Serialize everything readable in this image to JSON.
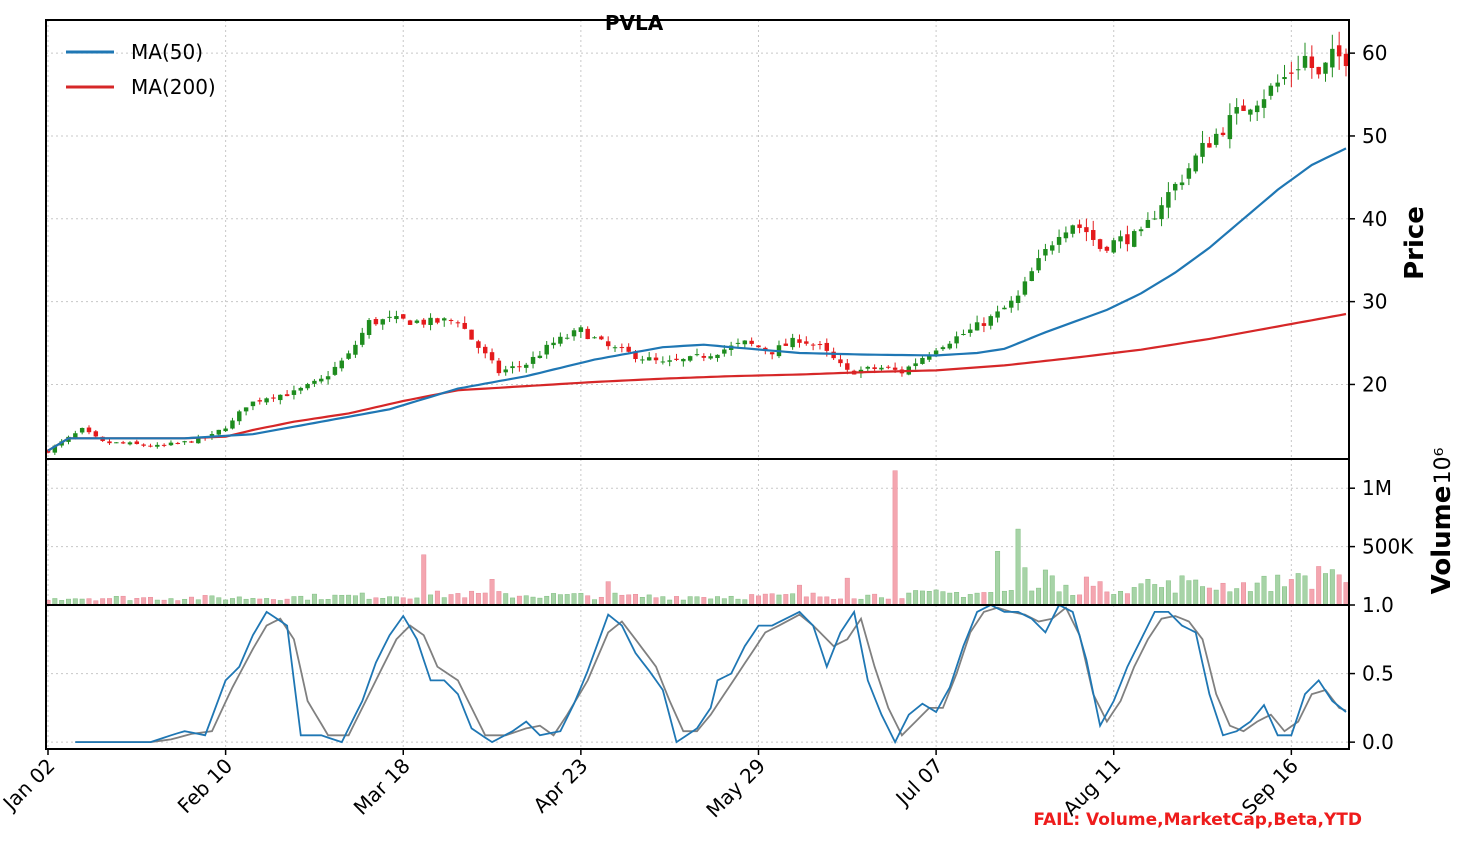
{
  "title": "PVLA",
  "failure_note": "FAIL: Volume,MarketCap,Beta,YTD",
  "colors": {
    "up": "#1e8c1e",
    "down": "#e41a1c",
    "ma50": "#1f77b4",
    "ma200": "#d62728",
    "vol_up": "#a7d3a7",
    "vol_down": "#f4a6b0",
    "stoch_k": "#1f77b4",
    "stoch_d": "#808080"
  },
  "price_axis": {
    "label": "Price",
    "ticks": [
      "20",
      "30",
      "40",
      "50",
      "60"
    ],
    "ylim": [
      11,
      64
    ]
  },
  "volume_axis": {
    "label": "Volume",
    "offset_text": "10⁶",
    "ticks": [
      "500K",
      "1M"
    ],
    "ylim": [
      0,
      1250000
    ]
  },
  "stoch_axis": {
    "ticks": [
      "0.0",
      "0.5",
      "1.0"
    ],
    "ylim": [
      -0.05,
      1.0
    ]
  },
  "x_axis": {
    "tick_labels": [
      "Jan 02",
      "Feb 10",
      "Mar 18",
      "Apr 23",
      "May 29",
      "Jul 07",
      "Aug 11",
      "Sep 16"
    ],
    "tick_index": [
      0,
      26,
      52,
      78,
      104,
      130,
      156,
      182
    ]
  },
  "legend": [
    {
      "label": "MA(50)",
      "color": "#1f77b4"
    },
    {
      "label": "MA(200)",
      "color": "#d62728"
    }
  ],
  "chart_data": [
    {
      "type": "candlestick",
      "n_bars": 191,
      "title": "PVLA",
      "ylabel": "Price",
      "close_keypoints": [
        [
          0,
          12.0
        ],
        [
          3,
          13.5
        ],
        [
          5,
          14.5
        ],
        [
          8,
          13.0
        ],
        [
          12,
          12.8
        ],
        [
          16,
          12.5
        ],
        [
          20,
          13.0
        ],
        [
          24,
          13.8
        ],
        [
          27,
          15.5
        ],
        [
          29,
          17.5
        ],
        [
          32,
          18.5
        ],
        [
          36,
          19.0
        ],
        [
          40,
          20.5
        ],
        [
          44,
          23.5
        ],
        [
          47,
          27.5
        ],
        [
          50,
          27.8
        ],
        [
          56,
          27.5
        ],
        [
          60,
          27.8
        ],
        [
          62,
          25.5
        ],
        [
          66,
          21.5
        ],
        [
          70,
          22.5
        ],
        [
          74,
          25.0
        ],
        [
          78,
          26.5
        ],
        [
          82,
          24.5
        ],
        [
          86,
          23.5
        ],
        [
          90,
          22.5
        ],
        [
          94,
          23.0
        ],
        [
          98,
          24.0
        ],
        [
          102,
          25.0
        ],
        [
          106,
          24.0
        ],
        [
          110,
          25.5
        ],
        [
          113,
          24.5
        ],
        [
          117,
          21.5
        ],
        [
          122,
          22.0
        ],
        [
          125,
          21.5
        ],
        [
          130,
          24.5
        ],
        [
          135,
          26.5
        ],
        [
          139,
          28.5
        ],
        [
          142,
          30.5
        ],
        [
          144,
          33.5
        ],
        [
          146,
          36.0
        ],
        [
          148,
          38.5
        ],
        [
          150,
          39.5
        ],
        [
          152,
          38.5
        ],
        [
          154,
          36.5
        ],
        [
          157,
          37.5
        ],
        [
          160,
          38.0
        ],
        [
          163,
          42.0
        ],
        [
          166,
          45.0
        ],
        [
          169,
          48.5
        ],
        [
          172,
          51.0
        ],
        [
          175,
          53.5
        ],
        [
          178,
          55.0
        ],
        [
          181,
          57.0
        ],
        [
          184,
          59.5
        ],
        [
          186,
          57.0
        ],
        [
          188,
          59.5
        ],
        [
          190,
          59.5
        ]
      ],
      "ma50_keypoints": [
        [
          0,
          12.0
        ],
        [
          3,
          13.5
        ],
        [
          10,
          13.5
        ],
        [
          20,
          13.5
        ],
        [
          30,
          14.0
        ],
        [
          40,
          15.5
        ],
        [
          50,
          17.0
        ],
        [
          60,
          19.5
        ],
        [
          70,
          21.0
        ],
        [
          80,
          23.0
        ],
        [
          90,
          24.5
        ],
        [
          96,
          24.8
        ],
        [
          100,
          24.5
        ],
        [
          110,
          23.8
        ],
        [
          120,
          23.6
        ],
        [
          130,
          23.5
        ],
        [
          136,
          23.8
        ],
        [
          140,
          24.3
        ],
        [
          146,
          26.3
        ],
        [
          150,
          27.5
        ],
        [
          155,
          29.0
        ],
        [
          160,
          31.0
        ],
        [
          165,
          33.5
        ],
        [
          170,
          36.5
        ],
        [
          175,
          40.0
        ],
        [
          180,
          43.5
        ],
        [
          185,
          46.5
        ],
        [
          190,
          48.5
        ]
      ],
      "ma200_keypoints": [
        [
          0,
          12.0
        ],
        [
          3,
          13.5
        ],
        [
          10,
          13.5
        ],
        [
          20,
          13.5
        ],
        [
          26,
          13.7
        ],
        [
          30,
          14.5
        ],
        [
          36,
          15.5
        ],
        [
          44,
          16.5
        ],
        [
          52,
          18.0
        ],
        [
          60,
          19.3
        ],
        [
          70,
          19.8
        ],
        [
          80,
          20.3
        ],
        [
          90,
          20.7
        ],
        [
          100,
          21.0
        ],
        [
          110,
          21.2
        ],
        [
          120,
          21.5
        ],
        [
          130,
          21.7
        ],
        [
          140,
          22.3
        ],
        [
          150,
          23.2
        ],
        [
          160,
          24.2
        ],
        [
          170,
          25.5
        ],
        [
          180,
          27.0
        ],
        [
          190,
          28.5
        ]
      ]
    },
    {
      "type": "bar",
      "title": "",
      "ylabel": "Volume",
      "baseline_keypoints": [
        [
          0,
          60000
        ],
        [
          30,
          60000
        ],
        [
          60,
          90000
        ],
        [
          90,
          70000
        ],
        [
          120,
          80000
        ],
        [
          140,
          110000
        ],
        [
          160,
          160000
        ],
        [
          175,
          170000
        ],
        [
          190,
          240000
        ]
      ],
      "spikes": [
        [
          55,
          430000
        ],
        [
          65,
          220000
        ],
        [
          82,
          200000
        ],
        [
          110,
          170000
        ],
        [
          117,
          230000
        ],
        [
          124,
          1150000
        ],
        [
          139,
          460000
        ],
        [
          142,
          650000
        ],
        [
          143,
          320000
        ],
        [
          146,
          300000
        ],
        [
          147,
          250000
        ],
        [
          152,
          240000
        ],
        [
          161,
          220000
        ],
        [
          166,
          250000
        ],
        [
          183,
          270000
        ],
        [
          184,
          250000
        ],
        [
          186,
          330000
        ],
        [
          187,
          270000
        ]
      ]
    },
    {
      "type": "line",
      "title": "",
      "ylabel": "",
      "series": [
        {
          "name": "",
          "color": "#1f77b4",
          "keypoints": [
            [
              4,
              0.0
            ],
            [
              10,
              0.0
            ],
            [
              15,
              0.0
            ],
            [
              18,
              0.05
            ],
            [
              20,
              0.08
            ],
            [
              23,
              0.05
            ],
            [
              26,
              0.45
            ],
            [
              28,
              0.55
            ],
            [
              30,
              0.78
            ],
            [
              32,
              0.95
            ],
            [
              35,
              0.85
            ],
            [
              37,
              0.05
            ],
            [
              40,
              0.05
            ],
            [
              43,
              0.0
            ],
            [
              46,
              0.3
            ],
            [
              48,
              0.58
            ],
            [
              50,
              0.78
            ],
            [
              52,
              0.92
            ],
            [
              54,
              0.75
            ],
            [
              56,
              0.45
            ],
            [
              58,
              0.45
            ],
            [
              60,
              0.35
            ],
            [
              62,
              0.1
            ],
            [
              65,
              0.0
            ],
            [
              68,
              0.08
            ],
            [
              70,
              0.15
            ],
            [
              72,
              0.05
            ],
            [
              75,
              0.08
            ],
            [
              77,
              0.28
            ],
            [
              79,
              0.52
            ],
            [
              82,
              0.93
            ],
            [
              84,
              0.85
            ],
            [
              86,
              0.65
            ],
            [
              88,
              0.52
            ],
            [
              90,
              0.38
            ],
            [
              92,
              0.0
            ],
            [
              95,
              0.1
            ],
            [
              97,
              0.25
            ],
            [
              98,
              0.45
            ],
            [
              100,
              0.5
            ],
            [
              102,
              0.7
            ],
            [
              104,
              0.85
            ],
            [
              106,
              0.85
            ],
            [
              108,
              0.9
            ],
            [
              110,
              0.95
            ],
            [
              112,
              0.85
            ],
            [
              114,
              0.55
            ],
            [
              116,
              0.8
            ],
            [
              118,
              0.95
            ],
            [
              120,
              0.45
            ],
            [
              122,
              0.2
            ],
            [
              124,
              0.0
            ],
            [
              126,
              0.2
            ],
            [
              128,
              0.28
            ],
            [
              130,
              0.22
            ],
            [
              132,
              0.4
            ],
            [
              134,
              0.7
            ],
            [
              136,
              0.95
            ],
            [
              138,
              1.0
            ],
            [
              140,
              0.95
            ],
            [
              142,
              0.95
            ],
            [
              144,
              0.9
            ],
            [
              146,
              0.8
            ],
            [
              148,
              1.0
            ],
            [
              150,
              0.95
            ],
            [
              152,
              0.6
            ],
            [
              154,
              0.12
            ],
            [
              156,
              0.3
            ],
            [
              158,
              0.55
            ],
            [
              160,
              0.75
            ],
            [
              162,
              0.95
            ],
            [
              164,
              0.95
            ],
            [
              166,
              0.85
            ],
            [
              168,
              0.8
            ],
            [
              170,
              0.35
            ],
            [
              172,
              0.05
            ],
            [
              174,
              0.08
            ],
            [
              176,
              0.15
            ],
            [
              178,
              0.27
            ],
            [
              180,
              0.05
            ],
            [
              182,
              0.05
            ],
            [
              184,
              0.35
            ],
            [
              186,
              0.45
            ],
            [
              188,
              0.3
            ],
            [
              190,
              0.22
            ]
          ]
        },
        {
          "name": "",
          "color": "#808080",
          "keypoints": [
            [
              4,
              0.0
            ],
            [
              10,
              0.0
            ],
            [
              15,
              0.0
            ],
            [
              18,
              0.02
            ],
            [
              21,
              0.06
            ],
            [
              24,
              0.08
            ],
            [
              27,
              0.4
            ],
            [
              30,
              0.68
            ],
            [
              32,
              0.85
            ],
            [
              34,
              0.9
            ],
            [
              36,
              0.75
            ],
            [
              38,
              0.3
            ],
            [
              41,
              0.05
            ],
            [
              44,
              0.05
            ],
            [
              47,
              0.35
            ],
            [
              49,
              0.55
            ],
            [
              51,
              0.75
            ],
            [
              53,
              0.85
            ],
            [
              55,
              0.78
            ],
            [
              57,
              0.55
            ],
            [
              60,
              0.45
            ],
            [
              62,
              0.25
            ],
            [
              64,
              0.05
            ],
            [
              67,
              0.05
            ],
            [
              70,
              0.1
            ],
            [
              72,
              0.12
            ],
            [
              74,
              0.05
            ],
            [
              76,
              0.2
            ],
            [
              79,
              0.45
            ],
            [
              82,
              0.8
            ],
            [
              84,
              0.88
            ],
            [
              86,
              0.75
            ],
            [
              89,
              0.55
            ],
            [
              91,
              0.3
            ],
            [
              93,
              0.08
            ],
            [
              95,
              0.08
            ],
            [
              97,
              0.2
            ],
            [
              99,
              0.35
            ],
            [
              101,
              0.5
            ],
            [
              103,
              0.65
            ],
            [
              105,
              0.8
            ],
            [
              107,
              0.85
            ],
            [
              110,
              0.93
            ],
            [
              112,
              0.85
            ],
            [
              115,
              0.7
            ],
            [
              117,
              0.75
            ],
            [
              119,
              0.9
            ],
            [
              121,
              0.55
            ],
            [
              123,
              0.25
            ],
            [
              125,
              0.05
            ],
            [
              127,
              0.15
            ],
            [
              129,
              0.25
            ],
            [
              131,
              0.25
            ],
            [
              133,
              0.5
            ],
            [
              135,
              0.8
            ],
            [
              137,
              0.95
            ],
            [
              139,
              0.98
            ],
            [
              141,
              0.95
            ],
            [
              143,
              0.93
            ],
            [
              145,
              0.88
            ],
            [
              147,
              0.9
            ],
            [
              149,
              0.98
            ],
            [
              151,
              0.78
            ],
            [
              153,
              0.35
            ],
            [
              155,
              0.15
            ],
            [
              157,
              0.3
            ],
            [
              159,
              0.55
            ],
            [
              161,
              0.75
            ],
            [
              163,
              0.9
            ],
            [
              165,
              0.92
            ],
            [
              167,
              0.88
            ],
            [
              169,
              0.75
            ],
            [
              171,
              0.35
            ],
            [
              173,
              0.12
            ],
            [
              175,
              0.08
            ],
            [
              177,
              0.15
            ],
            [
              179,
              0.2
            ],
            [
              181,
              0.08
            ],
            [
              183,
              0.15
            ],
            [
              185,
              0.35
            ],
            [
              187,
              0.38
            ],
            [
              189,
              0.25
            ],
            [
              190,
              0.23
            ]
          ]
        }
      ],
      "ylim": [
        -0.05,
        1.0
      ]
    }
  ]
}
